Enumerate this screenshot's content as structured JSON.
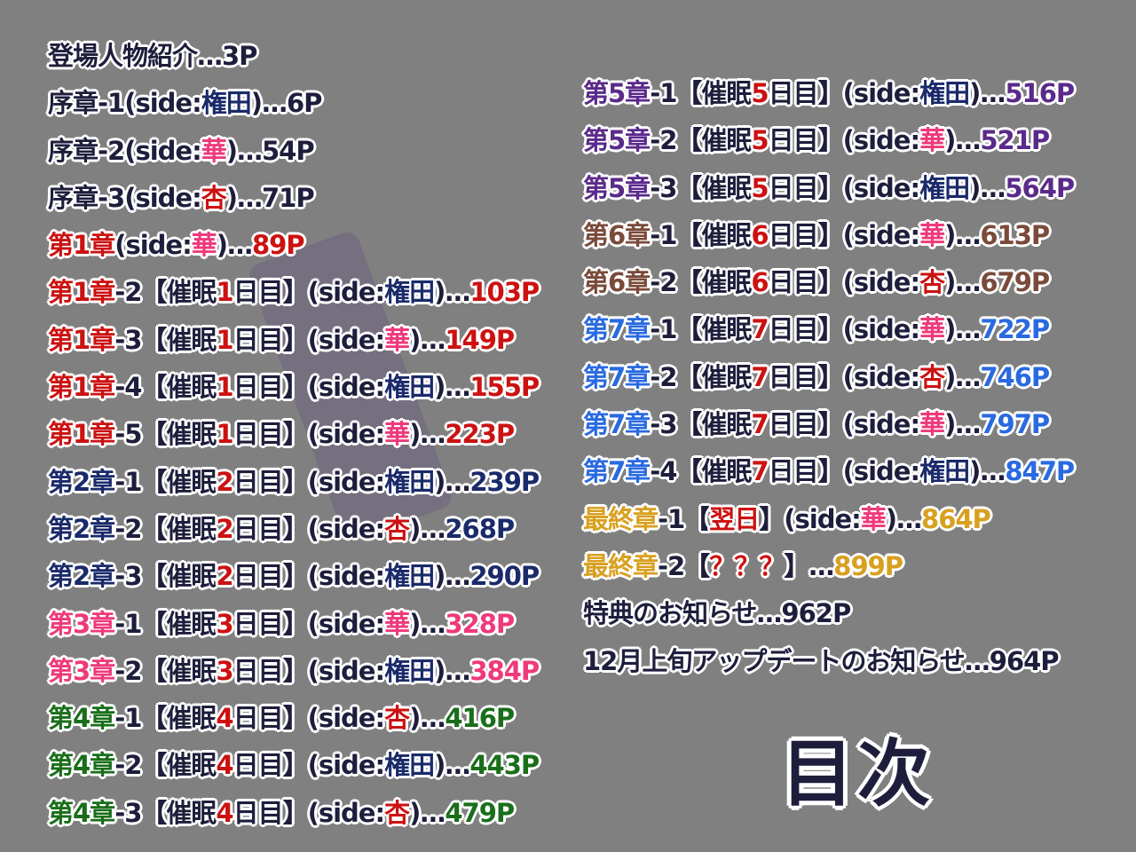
{
  "colors": {
    "d": "#1e1e3c",
    "r": "#cc1111",
    "n": "#1a2a6a",
    "p": "#ee3a7a",
    "g": "#1a6e1a",
    "u": "#5a2a8a",
    "b": "#7a4a3a",
    "l": "#2a6ae0",
    "y": "#d8a020"
  },
  "title": "目次",
  "left": [
    [
      [
        "登場人物紹介…3P",
        "d"
      ]
    ],
    [
      [
        "序章-1(side:",
        "d"
      ],
      [
        "権田",
        "n"
      ],
      [
        ")…6P",
        "d"
      ]
    ],
    [
      [
        "序章-2(side:",
        "d"
      ],
      [
        "華",
        "p"
      ],
      [
        ")…54P",
        "d"
      ]
    ],
    [
      [
        "序章-3(side:",
        "d"
      ],
      [
        "杏",
        "r"
      ],
      [
        ")…71P",
        "d"
      ]
    ],
    [
      [
        "第1章",
        "r"
      ],
      [
        "(side:",
        "d"
      ],
      [
        "華",
        "p"
      ],
      [
        ")…",
        "d"
      ],
      [
        "89P",
        "r"
      ]
    ],
    [
      [
        "第1章",
        "r"
      ],
      [
        "-2【催眠",
        "d"
      ],
      [
        "1",
        "r"
      ],
      [
        "日目】(side:",
        "d"
      ],
      [
        "権田",
        "n"
      ],
      [
        ")…",
        "d"
      ],
      [
        "103P",
        "r"
      ]
    ],
    [
      [
        "第1章",
        "r"
      ],
      [
        "-3【催眠",
        "d"
      ],
      [
        "1",
        "r"
      ],
      [
        "日目】(side:",
        "d"
      ],
      [
        "華",
        "p"
      ],
      [
        ")…",
        "d"
      ],
      [
        "149P",
        "r"
      ]
    ],
    [
      [
        "第1章",
        "r"
      ],
      [
        "-4【催眠",
        "d"
      ],
      [
        "1",
        "r"
      ],
      [
        "日目】(side:",
        "d"
      ],
      [
        "権田",
        "n"
      ],
      [
        ")…",
        "d"
      ],
      [
        "155P",
        "r"
      ]
    ],
    [
      [
        "第1章",
        "r"
      ],
      [
        "-5【催眠",
        "d"
      ],
      [
        "1",
        "r"
      ],
      [
        "日目】(side:",
        "d"
      ],
      [
        "華",
        "p"
      ],
      [
        ")…",
        "d"
      ],
      [
        "223P",
        "r"
      ]
    ],
    [
      [
        "第2章",
        "n"
      ],
      [
        "-1【催眠",
        "d"
      ],
      [
        "2",
        "r"
      ],
      [
        "日目】(side:",
        "d"
      ],
      [
        "権田",
        "n"
      ],
      [
        ")…",
        "d"
      ],
      [
        "239P",
        "n"
      ]
    ],
    [
      [
        "第2章",
        "n"
      ],
      [
        "-2【催眠",
        "d"
      ],
      [
        "2",
        "r"
      ],
      [
        "日目】(side:",
        "d"
      ],
      [
        "杏",
        "r"
      ],
      [
        ")…",
        "d"
      ],
      [
        "268P",
        "n"
      ]
    ],
    [
      [
        "第2章",
        "n"
      ],
      [
        "-3【催眠",
        "d"
      ],
      [
        "2",
        "r"
      ],
      [
        "日目】(side:",
        "d"
      ],
      [
        "権田",
        "n"
      ],
      [
        ")…",
        "d"
      ],
      [
        "290P",
        "n"
      ]
    ],
    [
      [
        "第3章",
        "p"
      ],
      [
        "-1【催眠",
        "d"
      ],
      [
        "3",
        "r"
      ],
      [
        "日目】(side:",
        "d"
      ],
      [
        "華",
        "p"
      ],
      [
        ")…",
        "d"
      ],
      [
        "328P",
        "p"
      ]
    ],
    [
      [
        "第3章",
        "p"
      ],
      [
        "-2【催眠",
        "d"
      ],
      [
        "3",
        "r"
      ],
      [
        "日目】(side:",
        "d"
      ],
      [
        "権田",
        "n"
      ],
      [
        ")…",
        "d"
      ],
      [
        "384P",
        "p"
      ]
    ],
    [
      [
        "第4章",
        "g"
      ],
      [
        "-1【催眠",
        "d"
      ],
      [
        "4",
        "r"
      ],
      [
        "日目】(side:",
        "d"
      ],
      [
        "杏",
        "r"
      ],
      [
        ")…",
        "d"
      ],
      [
        "416P",
        "g"
      ]
    ],
    [
      [
        "第4章",
        "g"
      ],
      [
        "-2【催眠",
        "d"
      ],
      [
        "4",
        "r"
      ],
      [
        "日目】(side:",
        "d"
      ],
      [
        "権田",
        "n"
      ],
      [
        ")…",
        "d"
      ],
      [
        "443P",
        "g"
      ]
    ],
    [
      [
        "第4章",
        "g"
      ],
      [
        "-3【催眠",
        "d"
      ],
      [
        "4",
        "r"
      ],
      [
        "日目】(side:",
        "d"
      ],
      [
        "杏",
        "r"
      ],
      [
        ")…",
        "d"
      ],
      [
        "479P",
        "g"
      ]
    ]
  ],
  "right": [
    [
      [
        "第5章",
        "u"
      ],
      [
        "-1【催眠",
        "d"
      ],
      [
        "5",
        "r"
      ],
      [
        "日目】(side:",
        "d"
      ],
      [
        "権田",
        "n"
      ],
      [
        ")…",
        "d"
      ],
      [
        "516P",
        "u"
      ]
    ],
    [
      [
        "第5章",
        "u"
      ],
      [
        "-2【催眠",
        "d"
      ],
      [
        "5",
        "r"
      ],
      [
        "日目】(side:",
        "d"
      ],
      [
        "華",
        "p"
      ],
      [
        ")…",
        "d"
      ],
      [
        "521P",
        "u"
      ]
    ],
    [
      [
        "第5章",
        "u"
      ],
      [
        "-3【催眠",
        "d"
      ],
      [
        "5",
        "r"
      ],
      [
        "日目】(side:",
        "d"
      ],
      [
        "権田",
        "n"
      ],
      [
        ")…",
        "d"
      ],
      [
        "564P",
        "u"
      ]
    ],
    [
      [
        "第6章",
        "b"
      ],
      [
        "-1【催眠",
        "d"
      ],
      [
        "6",
        "r"
      ],
      [
        "日目】(side:",
        "d"
      ],
      [
        "華",
        "p"
      ],
      [
        ")…",
        "d"
      ],
      [
        "613P",
        "b"
      ]
    ],
    [
      [
        "第6章",
        "b"
      ],
      [
        "-2【催眠",
        "d"
      ],
      [
        "6",
        "r"
      ],
      [
        "日目】(side:",
        "d"
      ],
      [
        "杏",
        "r"
      ],
      [
        ")…",
        "d"
      ],
      [
        "679P",
        "b"
      ]
    ],
    [
      [
        "第7章",
        "l"
      ],
      [
        "-1【催眠",
        "d"
      ],
      [
        "7",
        "r"
      ],
      [
        "日目】(side:",
        "d"
      ],
      [
        "華",
        "p"
      ],
      [
        ")…",
        "d"
      ],
      [
        "722P",
        "l"
      ]
    ],
    [
      [
        "第7章",
        "l"
      ],
      [
        "-2【催眠",
        "d"
      ],
      [
        "7",
        "r"
      ],
      [
        "日目】(side:",
        "d"
      ],
      [
        "杏",
        "r"
      ],
      [
        ")…",
        "d"
      ],
      [
        "746P",
        "l"
      ]
    ],
    [
      [
        "第7章",
        "l"
      ],
      [
        "-3【催眠",
        "d"
      ],
      [
        "7",
        "r"
      ],
      [
        "日目】(side:",
        "d"
      ],
      [
        "華",
        "p"
      ],
      [
        ")…",
        "d"
      ],
      [
        "797P",
        "l"
      ]
    ],
    [
      [
        "第7章",
        "l"
      ],
      [
        "-4【催眠",
        "d"
      ],
      [
        "7",
        "r"
      ],
      [
        "日目】(side:",
        "d"
      ],
      [
        "権田",
        "n"
      ],
      [
        ")…",
        "d"
      ],
      [
        "847P",
        "l"
      ]
    ],
    [
      [
        "最終章",
        "y"
      ],
      [
        "-1【",
        "d"
      ],
      [
        "翌日",
        "r"
      ],
      [
        "】(side:",
        "d"
      ],
      [
        "華",
        "p"
      ],
      [
        ")…",
        "d"
      ],
      [
        "864P",
        "y"
      ]
    ],
    [
      [
        "最終章",
        "y"
      ],
      [
        "-2【",
        "d"
      ],
      [
        "？？？",
        "r"
      ],
      [
        "】…",
        "d"
      ],
      [
        "899P",
        "y"
      ]
    ],
    [
      [
        "特典のお知らせ…962P",
        "d"
      ]
    ],
    [
      [
        "12月上旬アップデートのお知らせ…964P",
        "d"
      ]
    ]
  ]
}
